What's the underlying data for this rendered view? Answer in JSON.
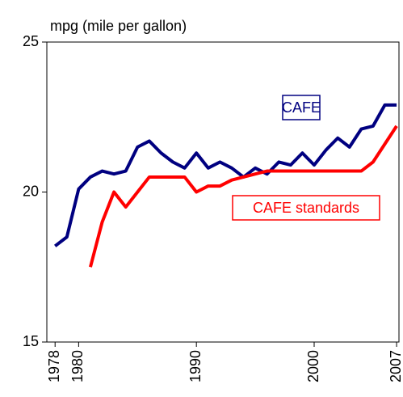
{
  "chart_data": {
    "type": "line",
    "y_label": "mpg (mile per gallon)",
    "x": [
      1978,
      1979,
      1980,
      1981,
      1982,
      1983,
      1984,
      1985,
      1986,
      1987,
      1988,
      1989,
      1990,
      1991,
      1992,
      1993,
      1994,
      1995,
      1996,
      1997,
      1998,
      1999,
      2000,
      2001,
      2002,
      2003,
      2004,
      2005,
      2006,
      2007
    ],
    "series": [
      {
        "name": "CAFE",
        "color": "#000080",
        "values": [
          18.2,
          18.5,
          20.1,
          20.5,
          20.7,
          20.6,
          20.7,
          21.5,
          21.7,
          21.3,
          21.0,
          20.8,
          21.3,
          20.8,
          21.0,
          20.8,
          20.5,
          20.8,
          20.6,
          21.0,
          20.9,
          21.3,
          20.9,
          21.4,
          21.8,
          21.5,
          22.1,
          22.2,
          22.9,
          22.9
        ]
      },
      {
        "name": "CAFE standards",
        "color": "#ff0000",
        "values": [
          null,
          null,
          null,
          17.5,
          19.0,
          20.0,
          19.5,
          20.0,
          20.5,
          20.5,
          20.5,
          20.5,
          20.0,
          20.2,
          20.2,
          20.4,
          20.5,
          20.6,
          20.7,
          20.7,
          20.7,
          20.7,
          20.7,
          20.7,
          20.7,
          20.7,
          20.7,
          21.0,
          21.6,
          22.2
        ]
      }
    ],
    "xlim": [
      1977.3,
      2007.2
    ],
    "xticks": [
      1978,
      1980,
      1990,
      2000,
      2007
    ],
    "ylim": [
      15,
      25
    ],
    "yticks": [
      15,
      20,
      25
    ],
    "grid": false
  }
}
